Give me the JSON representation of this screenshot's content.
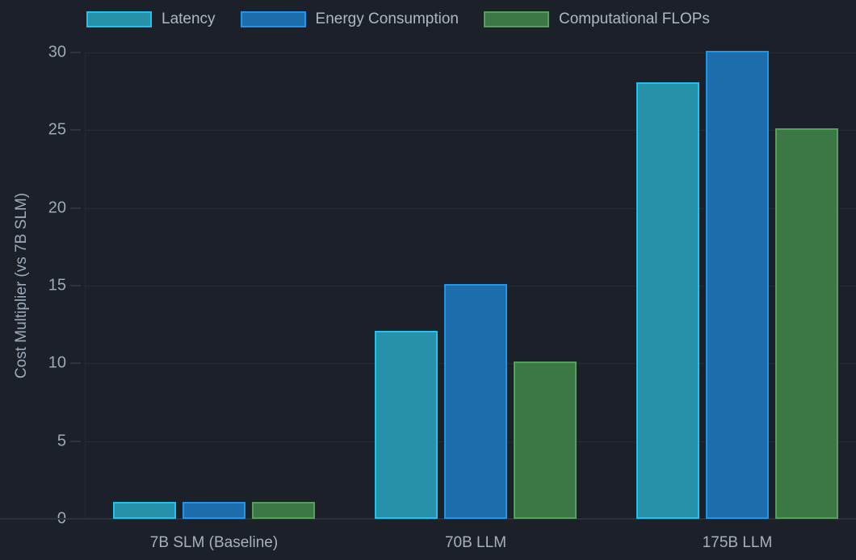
{
  "chart_data": {
    "type": "bar",
    "title": "",
    "categories": [
      "7B SLM (Baseline)",
      "70B LLM",
      "175B LLM"
    ],
    "series": [
      {
        "name": "Latency",
        "values": [
          1,
          12,
          28
        ],
        "fill": "#2791aa",
        "border": "#1ec3f2"
      },
      {
        "name": "Energy Consumption",
        "values": [
          1,
          15,
          30
        ],
        "fill": "#1d6dad",
        "border": "#1f96ea"
      },
      {
        "name": "Computational FLOPs",
        "values": [
          1,
          10,
          25
        ],
        "fill": "#3c7845",
        "border": "#54a15a"
      }
    ],
    "xlabel": "",
    "ylabel": "Cost Multiplier (vs 7B SLM)",
    "ylim": [
      0,
      30
    ],
    "yticks": [
      0,
      5,
      10,
      15,
      20,
      25,
      30
    ],
    "grid": true,
    "legend_position": "top-left"
  },
  "colors": {
    "background": "#1c2129",
    "gridline": "#262c35",
    "axis_line": "#2c323d",
    "tick_text": "#9caab6",
    "category_text": "#a6b1bc",
    "legend_text": "#aeb8c2",
    "ylabel_text": "#9cabb9"
  }
}
